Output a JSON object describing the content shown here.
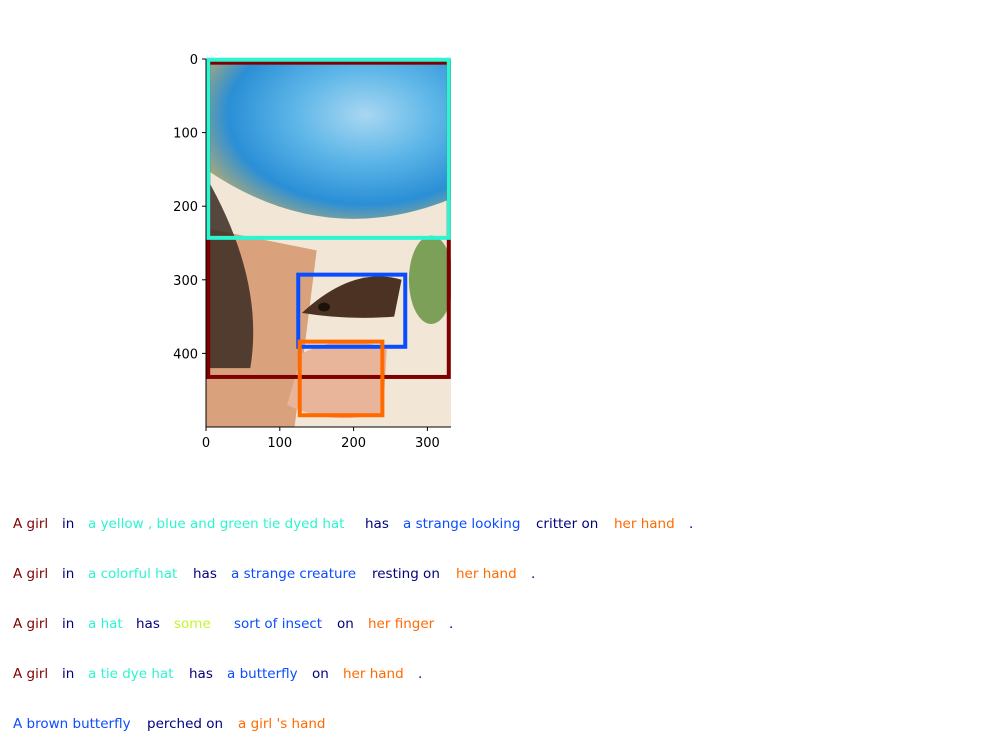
{
  "figure": {
    "image_extent": {
      "width": 332,
      "height": 500
    },
    "x_ticks": [
      "0",
      "100",
      "200",
      "300"
    ],
    "y_ticks": [
      "0",
      "100",
      "200",
      "300",
      "400"
    ],
    "image_regions": [
      {
        "label": "hat",
        "colors": [
          "#d8b35a",
          "#5fb7e8",
          "#2a8fd6",
          "#a9d7f2"
        ]
      },
      {
        "label": "hair and shoulder",
        "colors": [
          "#3a2a22",
          "#d9a27c",
          "#f2e6d6"
        ]
      },
      {
        "label": "butterfly",
        "colors": [
          "#4b3222",
          "#8b6a4a"
        ]
      },
      {
        "label": "hand",
        "colors": [
          "#e8b49a"
        ]
      }
    ],
    "boxes": [
      {
        "name": "girl-box",
        "color": "#7f0000",
        "x1": 3,
        "y1": 5,
        "x2": 329,
        "y2": 432
      },
      {
        "name": "hat-box",
        "color": "#2cf5d0",
        "x1": 3,
        "y1": 1,
        "x2": 329,
        "y2": 243
      },
      {
        "name": "butterfly-box",
        "color": "#0a4dff",
        "x1": 125,
        "y1": 293,
        "x2": 270,
        "y2": 391
      },
      {
        "name": "hand-box",
        "color": "#ff6a00",
        "x1": 127,
        "y1": 384,
        "x2": 239,
        "y2": 484
      }
    ]
  },
  "captions": [
    [
      {
        "text": "A girl",
        "color": "#7f0000"
      },
      {
        "text": "in",
        "color": "#000080"
      },
      {
        "text": "a yellow , blue and green tie dyed hat",
        "color": "#2cf5d0"
      },
      {
        "text": "has",
        "color": "#000080"
      },
      {
        "text": "a strange looking",
        "color": "#0a4dff"
      },
      {
        "text": "critter on",
        "color": "#000080"
      },
      {
        "text": "her hand",
        "color": "#ff6a00"
      },
      {
        "text": ".",
        "color": "#000080"
      }
    ],
    [
      {
        "text": "A girl",
        "color": "#7f0000"
      },
      {
        "text": "in",
        "color": "#000080"
      },
      {
        "text": "a colorful hat",
        "color": "#2cf5d0"
      },
      {
        "text": "has",
        "color": "#000080"
      },
      {
        "text": "a strange creature",
        "color": "#0a4dff"
      },
      {
        "text": "resting on",
        "color": "#000080"
      },
      {
        "text": "her hand",
        "color": "#ff6a00"
      },
      {
        "text": ".",
        "color": "#000080"
      }
    ],
    [
      {
        "text": "A girl",
        "color": "#7f0000"
      },
      {
        "text": "in",
        "color": "#000080"
      },
      {
        "text": "a hat",
        "color": "#2cf5d0"
      },
      {
        "text": "has",
        "color": "#000080"
      },
      {
        "text": "some",
        "color": "#c5f52c"
      },
      {
        "text": "sort of insect",
        "color": "#0a4dff"
      },
      {
        "text": "on",
        "color": "#000080"
      },
      {
        "text": "her finger",
        "color": "#ff6a00"
      },
      {
        "text": ".",
        "color": "#000080"
      }
    ],
    [
      {
        "text": "A girl",
        "color": "#7f0000"
      },
      {
        "text": "in",
        "color": "#000080"
      },
      {
        "text": "a tie dye hat",
        "color": "#2cf5d0"
      },
      {
        "text": "has",
        "color": "#000080"
      },
      {
        "text": "a butterfly",
        "color": "#0a4dff"
      },
      {
        "text": "on",
        "color": "#000080"
      },
      {
        "text": "her hand",
        "color": "#ff6a00"
      },
      {
        "text": ".",
        "color": "#000080"
      }
    ],
    [
      {
        "text": "A brown butterfly",
        "color": "#0a4dff"
      },
      {
        "text": "perched on",
        "color": "#000080"
      },
      {
        "text": "a girl 's hand",
        "color": "#ff6a00"
      }
    ]
  ]
}
